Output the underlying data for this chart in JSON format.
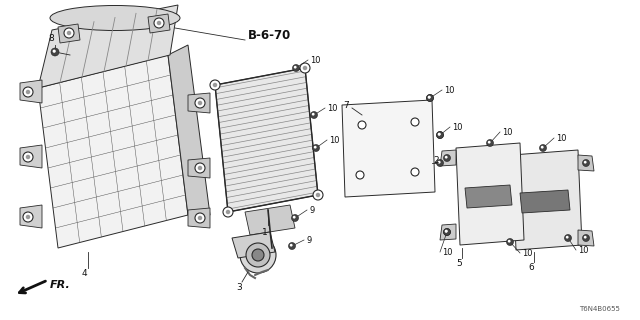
{
  "bg_color": "#ffffff",
  "fig_width": 6.4,
  "fig_height": 3.2,
  "dpi": 100,
  "lc": "#2a2a2a",
  "lw": 0.7,
  "part_label": "B-6-70",
  "diagram_code": "T6N4B0655",
  "fr_label": "FR."
}
